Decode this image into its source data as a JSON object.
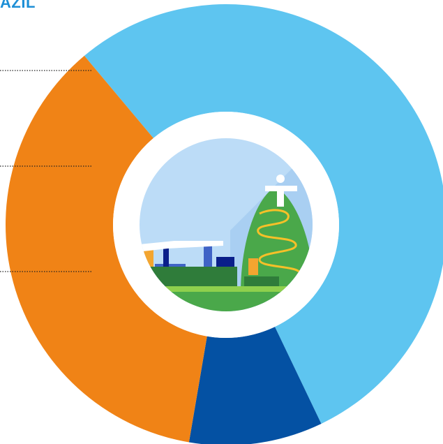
{
  "header": {
    "title_fragment": "AZIL"
  },
  "colors": {
    "light_blue": "#5ec5f0",
    "dark_blue": "#0451a3",
    "orange": "#f08316",
    "leader_line": "#222222"
  },
  "center_image": {
    "icon": "rio-skyline-illustration"
  },
  "chart_data": {
    "type": "pie",
    "donut": true,
    "title": "",
    "legend": "none",
    "slices": [
      {
        "value": 54.0,
        "color": "#5ec5f0"
      },
      {
        "value": 9.8,
        "color": "#0451a3"
      },
      {
        "value": 36.2,
        "color": "#f08316"
      }
    ]
  }
}
